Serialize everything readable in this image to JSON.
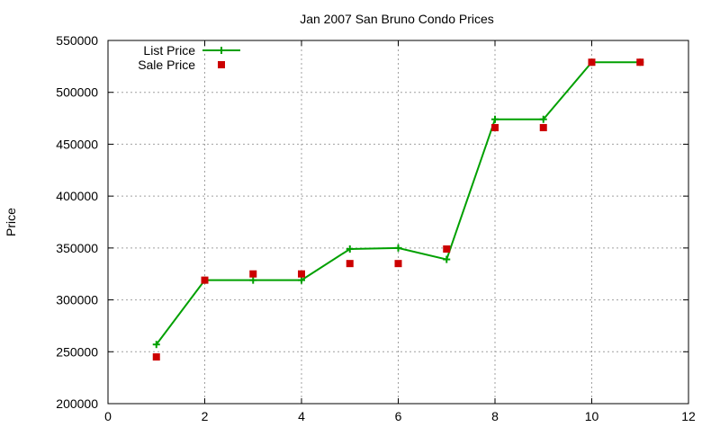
{
  "chart_data": {
    "type": "line",
    "title": "Jan 2007 San Bruno Condo Prices",
    "xlabel": "",
    "ylabel": "Price",
    "xlim": [
      0,
      12
    ],
    "ylim": [
      200000,
      550000
    ],
    "x_ticks": [
      0,
      2,
      4,
      6,
      8,
      10,
      12
    ],
    "y_ticks": [
      200000,
      250000,
      300000,
      350000,
      400000,
      450000,
      500000,
      550000
    ],
    "grid": true,
    "legend_position": "top-left",
    "series": [
      {
        "name": "List Price",
        "style": "line+cross",
        "color": "#00a000",
        "x": [
          1,
          2,
          3,
          4,
          5,
          6,
          7,
          8,
          9,
          10,
          11
        ],
        "values": [
          257000,
          319000,
          319000,
          319000,
          349000,
          350000,
          339000,
          474000,
          474000,
          529000,
          529000
        ]
      },
      {
        "name": "Sale Price",
        "style": "square-points",
        "color": "#cc0000",
        "x": [
          1,
          2,
          3,
          4,
          5,
          6,
          7,
          8,
          9,
          10,
          11
        ],
        "values": [
          245000,
          319000,
          325000,
          325000,
          335000,
          335000,
          349000,
          466000,
          466000,
          529000,
          529000
        ]
      }
    ]
  }
}
